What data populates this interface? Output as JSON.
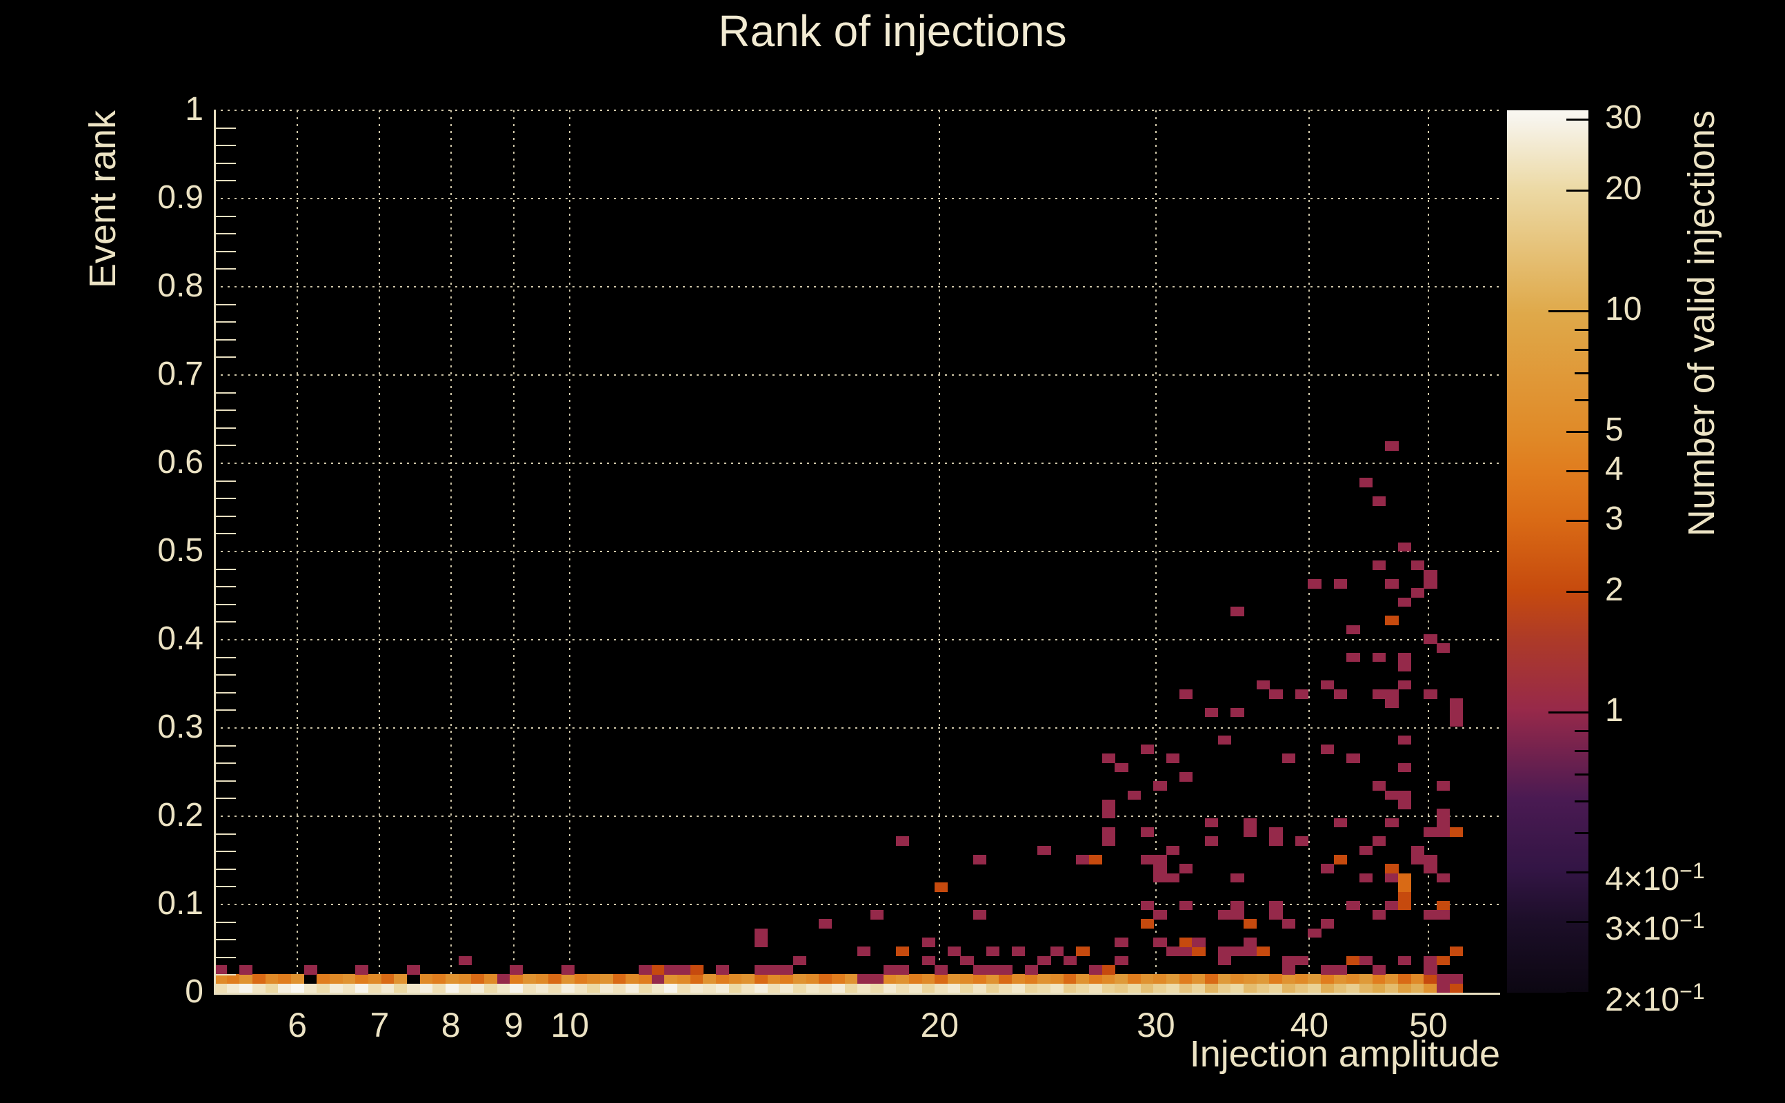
{
  "title": "Rank of injections",
  "axes": {
    "x": {
      "title": "Injection amplitude",
      "scale": "log",
      "min": 5.13,
      "max": 57.2,
      "major_ticks": [
        6,
        7,
        8,
        9,
        10,
        20,
        30,
        40,
        50
      ]
    },
    "y": {
      "title": "Event rank",
      "scale": "linear",
      "min": 0,
      "max": 1,
      "major_ticks": [
        0,
        0.1,
        0.2,
        0.3,
        0.4,
        0.5,
        0.6,
        0.7,
        0.8,
        0.9,
        1
      ],
      "minor_step": 0.02
    },
    "z": {
      "title": "Number of valid injections",
      "scale": "log",
      "min": 0.2,
      "max": 31.6,
      "major_ticks": [
        {
          "v": 30,
          "t": "30"
        },
        {
          "v": 20,
          "t": "20"
        },
        {
          "v": 10,
          "t": "10"
        },
        {
          "v": 5,
          "t": "5"
        },
        {
          "v": 4,
          "t": "4"
        },
        {
          "v": 3,
          "t": "3"
        },
        {
          "v": 2,
          "t": "2"
        },
        {
          "v": 1,
          "t": "1"
        },
        {
          "v": 0.4,
          "t": "4×10",
          "s": "−1"
        },
        {
          "v": 0.3,
          "t": "3×10",
          "s": "−1"
        },
        {
          "v": 0.2,
          "t": "2×10",
          "s": "−1"
        }
      ],
      "minor_ticks": [
        9,
        8,
        7,
        6,
        0.9,
        0.8,
        0.7,
        0.6,
        0.5
      ]
    }
  },
  "colors": {
    "background": "#000000",
    "text": "#ece3c4",
    "grid": "#cfc6a8",
    "axis": "#e8dfc0",
    "colormap_stops": [
      [
        0.0,
        "#0c0712"
      ],
      [
        0.08,
        "#1c0e28"
      ],
      [
        0.14,
        "#331545"
      ],
      [
        0.22,
        "#4a1a52"
      ],
      [
        0.32,
        "#97294a"
      ],
      [
        0.4,
        "#ad3a28"
      ],
      [
        0.455,
        "#c64a0e"
      ],
      [
        0.535,
        "#d96a15"
      ],
      [
        0.59,
        "#e07c1e"
      ],
      [
        0.634,
        "#e08a28"
      ],
      [
        0.77,
        "#dfa94a"
      ],
      [
        0.91,
        "#ecd9a4"
      ],
      [
        0.99,
        "#f7f4ec"
      ],
      [
        1.0,
        "#faf8f2"
      ]
    ]
  },
  "chart_data": {
    "type": "heatmap",
    "title": "Rank of injections",
    "xlabel": "Injection amplitude",
    "ylabel": "Event rank",
    "zlabel": "Number of valid injections",
    "x_scale": "log",
    "x_range": [
      5.13,
      57.2
    ],
    "y_range": [
      0,
      1
    ],
    "z_scale": "log",
    "z_range": [
      0.2,
      31.6
    ],
    "grid": {
      "n_cols": 97,
      "n_rows": 96,
      "x_data_range": [
        5.13,
        53.3
      ],
      "legend_position": "right",
      "grid_on": true
    },
    "bottom_row_counts": [
      22,
      26,
      30,
      24,
      20,
      28,
      32,
      25,
      21,
      27,
      24,
      30,
      22,
      26,
      20,
      25,
      28,
      22,
      30,
      24,
      27,
      21,
      25,
      30,
      23,
      26,
      22,
      28,
      24,
      20,
      26,
      23,
      28,
      21,
      25,
      30,
      22,
      26,
      24,
      27,
      20,
      24,
      28,
      22,
      26,
      21,
      25,
      23,
      27,
      20,
      24,
      21,
      26,
      22,
      25,
      19,
      23,
      26,
      20,
      24,
      18,
      22,
      25,
      19,
      21,
      24,
      17,
      20,
      23,
      18,
      16,
      20,
      14,
      18,
      21,
      15,
      19,
      12,
      17,
      20,
      13,
      16,
      19,
      12,
      15,
      18,
      11,
      14,
      17,
      12,
      10,
      13,
      8,
      11,
      6,
      1,
      2
    ],
    "second_row_counts": [
      5,
      4,
      6,
      3,
      5,
      4,
      6,
      0,
      4,
      5,
      6,
      4,
      5,
      3,
      6,
      0,
      5,
      4,
      6,
      5,
      3,
      5,
      1,
      4,
      6,
      5,
      3,
      6,
      4,
      5,
      6,
      3,
      5,
      4,
      1,
      6,
      5,
      3,
      6,
      4,
      5,
      6,
      3,
      5,
      4,
      6,
      5,
      3,
      4,
      6,
      1,
      1,
      5,
      6,
      4,
      5,
      3,
      6,
      5,
      4,
      6,
      3,
      5,
      4,
      6,
      5,
      3,
      6,
      4,
      5,
      7,
      4,
      6,
      5,
      7,
      4,
      6,
      3,
      7,
      5,
      6,
      7,
      4,
      6,
      5,
      7,
      4,
      6,
      5,
      7,
      4,
      6,
      3,
      5,
      2,
      1,
      1
    ],
    "cells": [
      [
        0,
        2,
        1
      ],
      [
        2,
        2,
        1
      ],
      [
        7,
        2,
        1
      ],
      [
        11,
        2,
        1
      ],
      [
        15,
        2,
        1
      ],
      [
        19,
        3,
        1
      ],
      [
        23,
        2,
        1
      ],
      [
        27,
        2,
        1
      ],
      [
        33,
        2,
        1
      ],
      [
        34,
        2,
        2
      ],
      [
        35,
        2,
        1
      ],
      [
        36,
        2,
        1
      ],
      [
        37,
        2,
        2
      ],
      [
        39,
        2,
        1
      ],
      [
        42,
        2,
        1
      ],
      [
        43,
        2,
        1
      ],
      [
        44,
        2,
        1
      ],
      [
        45,
        3,
        1
      ],
      [
        42,
        5,
        1
      ],
      [
        42,
        6,
        1
      ],
      [
        47,
        7,
        1
      ],
      [
        50,
        4,
        1
      ],
      [
        51,
        8,
        1
      ],
      [
        52,
        2,
        1
      ],
      [
        53,
        2,
        1
      ],
      [
        53,
        4,
        2
      ],
      [
        53,
        16,
        1
      ],
      [
        55,
        3,
        1
      ],
      [
        55,
        5,
        1
      ],
      [
        56,
        2,
        1
      ],
      [
        56,
        11,
        2
      ],
      [
        57,
        4,
        1
      ],
      [
        58,
        3,
        1
      ],
      [
        59,
        2,
        1
      ],
      [
        59,
        8,
        1
      ],
      [
        59,
        14,
        1
      ],
      [
        60,
        2,
        1
      ],
      [
        60,
        4,
        1
      ],
      [
        61,
        2,
        1
      ],
      [
        62,
        4,
        1
      ],
      [
        63,
        2,
        1
      ],
      [
        64,
        3,
        1
      ],
      [
        64,
        15,
        1
      ],
      [
        65,
        4,
        1
      ],
      [
        66,
        3,
        1
      ],
      [
        67,
        4,
        2
      ],
      [
        67,
        14,
        1
      ],
      [
        68,
        2,
        1
      ],
      [
        68,
        14,
        2
      ],
      [
        69,
        2,
        2
      ],
      [
        69,
        16,
        1
      ],
      [
        69,
        17,
        1
      ],
      [
        69,
        19,
        1
      ],
      [
        69,
        20,
        1
      ],
      [
        69,
        25,
        1
      ],
      [
        70,
        3,
        1
      ],
      [
        70,
        5,
        1
      ],
      [
        70,
        24,
        1
      ],
      [
        71,
        21,
        1
      ],
      [
        72,
        7,
        2
      ],
      [
        72,
        9,
        1
      ],
      [
        72,
        14,
        1
      ],
      [
        72,
        17,
        1
      ],
      [
        72,
        26,
        1
      ],
      [
        73,
        5,
        1
      ],
      [
        73,
        8,
        1
      ],
      [
        73,
        12,
        1
      ],
      [
        73,
        13,
        1
      ],
      [
        73,
        14,
        1
      ],
      [
        73,
        22,
        1
      ],
      [
        74,
        4,
        1
      ],
      [
        74,
        12,
        1
      ],
      [
        74,
        15,
        1
      ],
      [
        74,
        25,
        1
      ],
      [
        75,
        4,
        1
      ],
      [
        75,
        5,
        2
      ],
      [
        75,
        9,
        1
      ],
      [
        75,
        13,
        1
      ],
      [
        75,
        23,
        1
      ],
      [
        75,
        32,
        1
      ],
      [
        76,
        4,
        2
      ],
      [
        76,
        5,
        1
      ],
      [
        77,
        16,
        1
      ],
      [
        77,
        18,
        1
      ],
      [
        77,
        30,
        1
      ],
      [
        78,
        3,
        1
      ],
      [
        78,
        4,
        1
      ],
      [
        78,
        8,
        1
      ],
      [
        78,
        27,
        1
      ],
      [
        79,
        4,
        1
      ],
      [
        79,
        8,
        1
      ],
      [
        79,
        9,
        1
      ],
      [
        79,
        12,
        1
      ],
      [
        79,
        30,
        1
      ],
      [
        79,
        41,
        1
      ],
      [
        80,
        4,
        1
      ],
      [
        80,
        5,
        1
      ],
      [
        80,
        7,
        2
      ],
      [
        80,
        17,
        1
      ],
      [
        80,
        18,
        1
      ],
      [
        81,
        4,
        2
      ],
      [
        81,
        33,
        1
      ],
      [
        82,
        8,
        1
      ],
      [
        82,
        9,
        1
      ],
      [
        82,
        16,
        1
      ],
      [
        82,
        17,
        1
      ],
      [
        82,
        32,
        1
      ],
      [
        83,
        2,
        1
      ],
      [
        83,
        3,
        1
      ],
      [
        83,
        7,
        1
      ],
      [
        83,
        25,
        1
      ],
      [
        84,
        3,
        1
      ],
      [
        84,
        16,
        1
      ],
      [
        84,
        32,
        1
      ],
      [
        85,
        6,
        1
      ],
      [
        85,
        44,
        1
      ],
      [
        86,
        2,
        1
      ],
      [
        86,
        7,
        1
      ],
      [
        86,
        13,
        1
      ],
      [
        86,
        26,
        1
      ],
      [
        86,
        33,
        1
      ],
      [
        87,
        2,
        1
      ],
      [
        87,
        14,
        2
      ],
      [
        87,
        18,
        1
      ],
      [
        87,
        32,
        1
      ],
      [
        87,
        44,
        1
      ],
      [
        88,
        3,
        2
      ],
      [
        88,
        9,
        1
      ],
      [
        88,
        25,
        1
      ],
      [
        88,
        36,
        1
      ],
      [
        88,
        39,
        1
      ],
      [
        89,
        3,
        1
      ],
      [
        89,
        12,
        1
      ],
      [
        89,
        15,
        1
      ],
      [
        89,
        55,
        1
      ],
      [
        90,
        2,
        1
      ],
      [
        90,
        8,
        1
      ],
      [
        90,
        16,
        1
      ],
      [
        90,
        22,
        1
      ],
      [
        90,
        32,
        1
      ],
      [
        90,
        36,
        1
      ],
      [
        90,
        46,
        1
      ],
      [
        90,
        53,
        1
      ],
      [
        91,
        9,
        1
      ],
      [
        91,
        12,
        1
      ],
      [
        91,
        13,
        2
      ],
      [
        91,
        18,
        1
      ],
      [
        91,
        21,
        1
      ],
      [
        91,
        31,
        1
      ],
      [
        91,
        32,
        1
      ],
      [
        91,
        40,
        2
      ],
      [
        91,
        44,
        1
      ],
      [
        91,
        59,
        1
      ],
      [
        92,
        3,
        1
      ],
      [
        92,
        9,
        2
      ],
      [
        92,
        10,
        2
      ],
      [
        92,
        11,
        3
      ],
      [
        92,
        12,
        3
      ],
      [
        92,
        20,
        1
      ],
      [
        92,
        21,
        1
      ],
      [
        92,
        24,
        1
      ],
      [
        92,
        27,
        1
      ],
      [
        92,
        33,
        1
      ],
      [
        92,
        35,
        1
      ],
      [
        92,
        36,
        1
      ],
      [
        92,
        42,
        1
      ],
      [
        92,
        48,
        1
      ],
      [
        93,
        14,
        1
      ],
      [
        93,
        15,
        1
      ],
      [
        93,
        43,
        1
      ],
      [
        93,
        46,
        1
      ],
      [
        94,
        2,
        1
      ],
      [
        94,
        3,
        1
      ],
      [
        94,
        8,
        1
      ],
      [
        94,
        13,
        1
      ],
      [
        94,
        14,
        1
      ],
      [
        94,
        17,
        1
      ],
      [
        94,
        32,
        1
      ],
      [
        94,
        38,
        1
      ],
      [
        94,
        44,
        1
      ],
      [
        94,
        45,
        1
      ],
      [
        95,
        3,
        2
      ],
      [
        95,
        8,
        1
      ],
      [
        95,
        9,
        2
      ],
      [
        95,
        12,
        1
      ],
      [
        95,
        17,
        1
      ],
      [
        95,
        18,
        1
      ],
      [
        95,
        19,
        1
      ],
      [
        95,
        22,
        1
      ],
      [
        95,
        37,
        1
      ],
      [
        96,
        4,
        2
      ],
      [
        96,
        17,
        2
      ],
      [
        96,
        29,
        1
      ],
      [
        96,
        30,
        1
      ],
      [
        96,
        31,
        1
      ]
    ]
  }
}
